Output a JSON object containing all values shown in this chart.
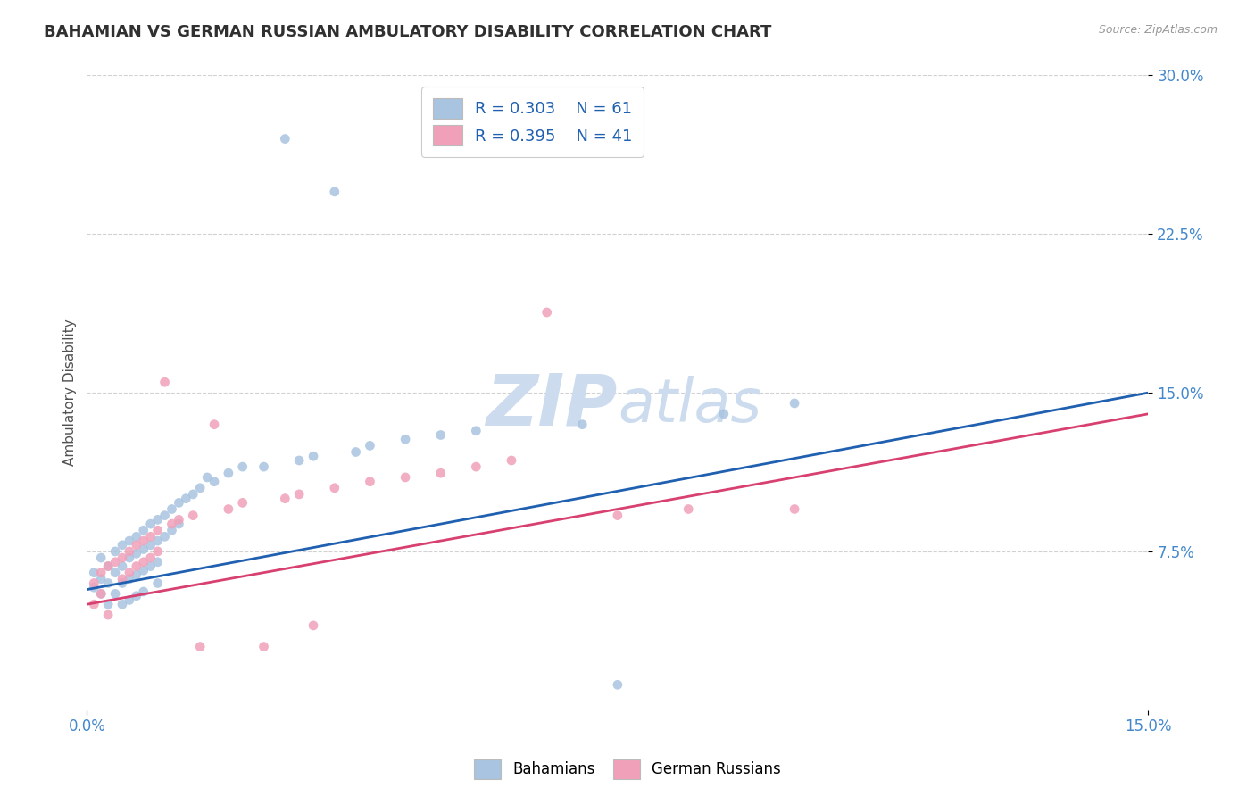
{
  "title": "BAHAMIAN VS GERMAN RUSSIAN AMBULATORY DISABILITY CORRELATION CHART",
  "source": "Source: ZipAtlas.com",
  "ylabel": "Ambulatory Disability",
  "xlim": [
    0.0,
    0.15
  ],
  "ylim": [
    0.0,
    0.3
  ],
  "xtick_vals": [
    0.0,
    0.15
  ],
  "xtick_labels": [
    "0.0%",
    "15.0%"
  ],
  "ytick_vals": [
    0.075,
    0.15,
    0.225,
    0.3
  ],
  "ytick_labels": [
    "7.5%",
    "15.0%",
    "22.5%",
    "30.0%"
  ],
  "legend_r1": "R = 0.303",
  "legend_n1": "N = 61",
  "legend_r2": "R = 0.395",
  "legend_n2": "N = 41",
  "color_blue": "#a8c4e0",
  "color_pink": "#f0a0b8",
  "line_color_blue": "#2060b0",
  "line_color_pink": "#d84070",
  "watermark_color": "#ccdcee",
  "background_color": "#ffffff",
  "title_color": "#303030",
  "tick_label_color": "#4488cc",
  "bahamians_x": [
    0.001,
    0.001,
    0.002,
    0.002,
    0.002,
    0.003,
    0.003,
    0.003,
    0.004,
    0.004,
    0.004,
    0.005,
    0.005,
    0.005,
    0.005,
    0.006,
    0.006,
    0.006,
    0.006,
    0.007,
    0.007,
    0.007,
    0.007,
    0.008,
    0.008,
    0.008,
    0.008,
    0.009,
    0.009,
    0.009,
    0.01,
    0.01,
    0.01,
    0.01,
    0.011,
    0.011,
    0.012,
    0.012,
    0.013,
    0.013,
    0.014,
    0.015,
    0.016,
    0.017,
    0.018,
    0.02,
    0.022,
    0.025,
    0.028,
    0.03,
    0.032,
    0.035,
    0.038,
    0.04,
    0.045,
    0.05,
    0.055,
    0.07,
    0.075,
    0.09,
    0.1
  ],
  "bahamians_y": [
    0.065,
    0.058,
    0.072,
    0.062,
    0.055,
    0.068,
    0.06,
    0.05,
    0.075,
    0.065,
    0.055,
    0.078,
    0.068,
    0.06,
    0.05,
    0.08,
    0.072,
    0.062,
    0.052,
    0.082,
    0.074,
    0.064,
    0.054,
    0.085,
    0.076,
    0.066,
    0.056,
    0.088,
    0.078,
    0.068,
    0.09,
    0.08,
    0.07,
    0.06,
    0.092,
    0.082,
    0.095,
    0.085,
    0.098,
    0.088,
    0.1,
    0.102,
    0.105,
    0.11,
    0.108,
    0.112,
    0.115,
    0.115,
    0.27,
    0.118,
    0.12,
    0.245,
    0.122,
    0.125,
    0.128,
    0.13,
    0.132,
    0.135,
    0.012,
    0.14,
    0.145
  ],
  "german_russian_x": [
    0.001,
    0.001,
    0.002,
    0.002,
    0.003,
    0.003,
    0.004,
    0.005,
    0.005,
    0.006,
    0.006,
    0.007,
    0.007,
    0.008,
    0.008,
    0.009,
    0.009,
    0.01,
    0.01,
    0.011,
    0.012,
    0.013,
    0.015,
    0.016,
    0.018,
    0.02,
    0.022,
    0.025,
    0.028,
    0.03,
    0.032,
    0.035,
    0.04,
    0.045,
    0.05,
    0.055,
    0.06,
    0.065,
    0.075,
    0.085,
    0.1
  ],
  "german_russian_y": [
    0.06,
    0.05,
    0.065,
    0.055,
    0.068,
    0.045,
    0.07,
    0.072,
    0.062,
    0.075,
    0.065,
    0.078,
    0.068,
    0.08,
    0.07,
    0.082,
    0.072,
    0.085,
    0.075,
    0.155,
    0.088,
    0.09,
    0.092,
    0.03,
    0.135,
    0.095,
    0.098,
    0.03,
    0.1,
    0.102,
    0.04,
    0.105,
    0.108,
    0.11,
    0.112,
    0.115,
    0.118,
    0.188,
    0.092,
    0.095,
    0.095
  ],
  "blue_line_x0": 0.0,
  "blue_line_y0": 0.057,
  "blue_line_x1": 0.15,
  "blue_line_y1": 0.15,
  "pink_line_x0": 0.0,
  "pink_line_y0": 0.05,
  "pink_line_x1": 0.15,
  "pink_line_y1": 0.14
}
